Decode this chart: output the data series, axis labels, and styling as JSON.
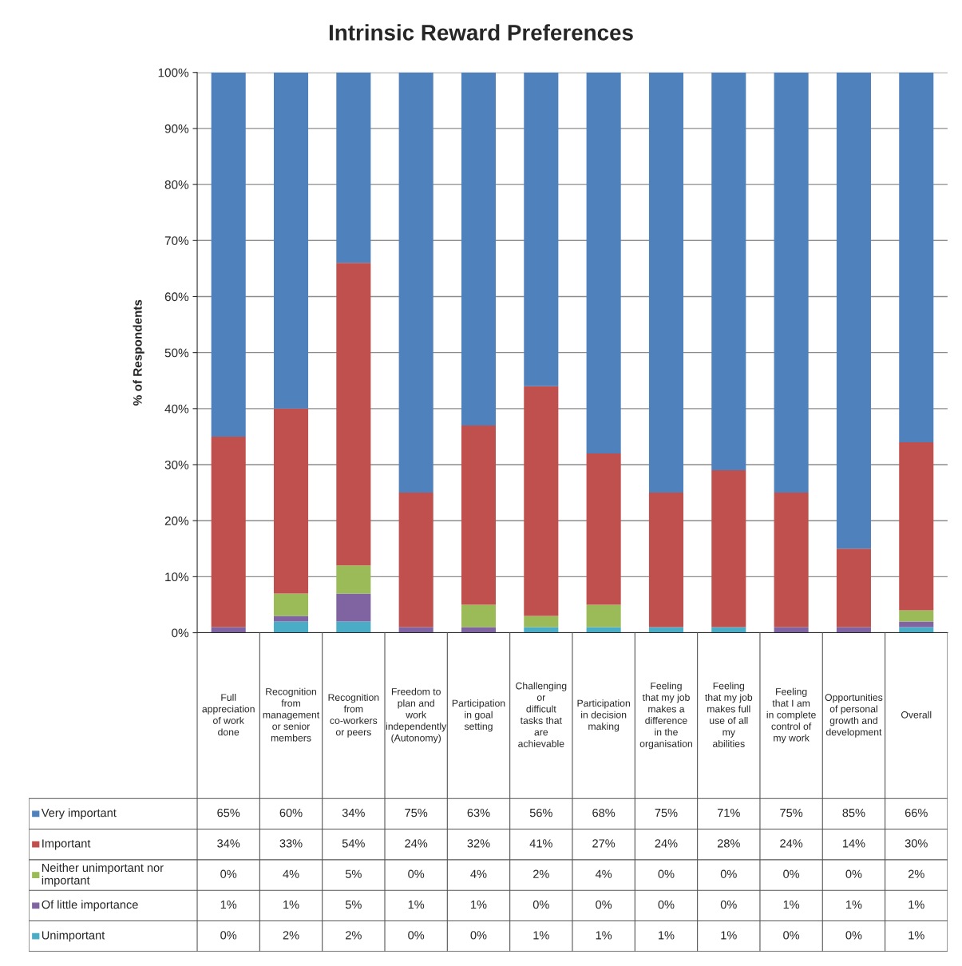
{
  "chart_data": {
    "type": "bar",
    "title": "Intrinsic Reward Preferences",
    "ylabel": "% of Respondents",
    "stacked": true,
    "legend": "bottom left",
    "tick_labels": "y",
    "grid": "y",
    "categories": [
      "Full appreciation of work done",
      "Recognition from management or senior members",
      "Recognition from co-workers or peers",
      "Freedom to plan and work independently (Autonomy)",
      "Participation in goal setting",
      "Challenging or difficult tasks that are achievable",
      "Participation in decision making",
      "Feeling that my job makes a difference in the organisation",
      "Feeling that my job makes full use of all my abilities",
      "Feeling that I am in complete control of my work",
      "Opportunities of personal growth and development",
      "Overall"
    ],
    "ylim": [
      0,
      100
    ],
    "yticks": [
      {
        "value": 0,
        "label": "0%"
      },
      {
        "value": 10,
        "label": "10%"
      },
      {
        "value": 20,
        "label": "20%"
      },
      {
        "value": 30,
        "label": "30%"
      },
      {
        "value": 40,
        "label": "40%"
      },
      {
        "value": 50,
        "label": "50%"
      },
      {
        "value": 60,
        "label": "60%"
      },
      {
        "value": 70,
        "label": "70%"
      },
      {
        "value": 80,
        "label": "80%"
      },
      {
        "value": 90,
        "label": "90%"
      },
      {
        "value": 100,
        "label": "100%"
      }
    ],
    "series": [
      {
        "name": "Unimportant",
        "color": "#4bacc6",
        "values": [
          0,
          2,
          2,
          0,
          0,
          1,
          1,
          1,
          1,
          0,
          0,
          1
        ],
        "value_labels": [
          "0%",
          "2%",
          "2%",
          "0%",
          "0%",
          "1%",
          "1%",
          "1%",
          "1%",
          "0%",
          "0%",
          "1%"
        ]
      },
      {
        "name": "Of little importance",
        "color": "#8064a2",
        "values": [
          1,
          1,
          5,
          1,
          1,
          0,
          0,
          0,
          0,
          1,
          1,
          1
        ],
        "value_labels": [
          "1%",
          "1%",
          "5%",
          "1%",
          "1%",
          "0%",
          "0%",
          "0%",
          "0%",
          "1%",
          "1%",
          "1%"
        ]
      },
      {
        "name": "Neither unimportant nor important",
        "color": "#9bbb59",
        "values": [
          0,
          4,
          5,
          0,
          4,
          2,
          4,
          0,
          0,
          0,
          0,
          2
        ],
        "value_labels": [
          "0%",
          "4%",
          "5%",
          "0%",
          "4%",
          "2%",
          "4%",
          "0%",
          "0%",
          "0%",
          "0%",
          "2%"
        ]
      },
      {
        "name": "Important",
        "color": "#c0504d",
        "values": [
          34,
          33,
          54,
          24,
          32,
          41,
          27,
          24,
          28,
          24,
          14,
          30
        ],
        "value_labels": [
          "34%",
          "33%",
          "54%",
          "24%",
          "32%",
          "41%",
          "27%",
          "24%",
          "28%",
          "24%",
          "14%",
          "30%"
        ]
      },
      {
        "name": "Very important",
        "color": "#4f81bd",
        "values": [
          65,
          60,
          34,
          75,
          63,
          56,
          68,
          75,
          71,
          75,
          85,
          66
        ],
        "value_labels": [
          "65%",
          "60%",
          "34%",
          "75%",
          "63%",
          "56%",
          "68%",
          "75%",
          "71%",
          "75%",
          "85%",
          "66%"
        ]
      }
    ]
  }
}
